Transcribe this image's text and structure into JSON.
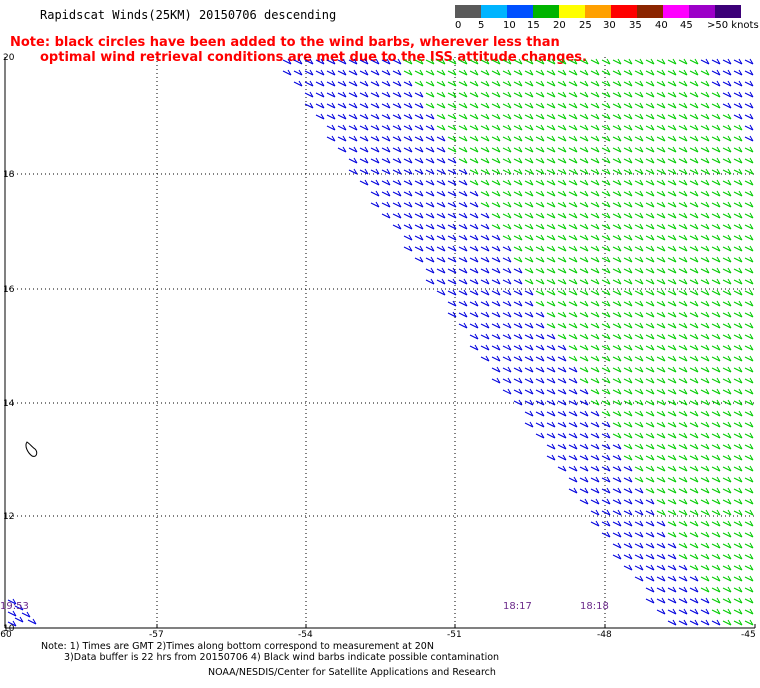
{
  "title": "Rapidscat Winds(25KM) 20150706 descending",
  "note_line1": "Note: black circles have been added to the wind barbs, wherever less than",
  "note_line2": "optimal wind retrieval conditions are met due to the ISS attitude changes.",
  "colorbar": {
    "labels": [
      "0",
      "5",
      "10",
      "15",
      "20",
      "25",
      "30",
      "35",
      "40",
      "45",
      ">50 knots"
    ],
    "colors": [
      "#5a5a5a",
      "#00b4ff",
      "#0050ff",
      "#00b400",
      "#ffff00",
      "#ffa000",
      "#ff0000",
      "#8b2500",
      "#ff00ff",
      "#9c00c8",
      "#3c0078"
    ]
  },
  "axes": {
    "lat_labels": [
      "20",
      "18",
      "16",
      "14",
      "12",
      "10"
    ],
    "lon_labels": [
      "-60",
      "-57",
      "-54",
      "-51",
      "-48",
      "-45"
    ]
  },
  "times": [
    {
      "label": "19:53"
    },
    {
      "label": "18:17"
    },
    {
      "label": "18:18"
    }
  ],
  "footer": {
    "line1": "Note: 1) Times are GMT 2)Times along bottom correspond to measurement at 20N",
    "line2": "3)Data buffer is 22 hrs from 20150706 4) Black wind barbs indicate possible contamination",
    "line3": "NOAA/NESDIS/Center for Satellite Applications and Research"
  },
  "wind_colors": {
    "blue": "#0000dd",
    "green": "#00cc00"
  }
}
